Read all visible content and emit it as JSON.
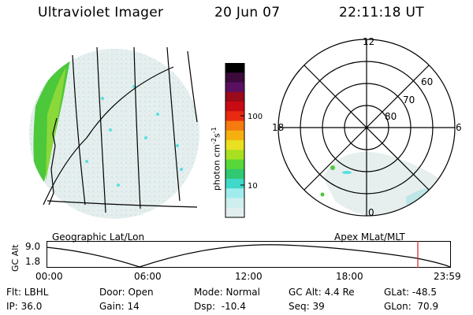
{
  "header": {
    "title": "Ultraviolet Imager",
    "date": "20 Jun 07",
    "time": "22:11:18 UT"
  },
  "geo_panel": {
    "label": "Geographic Lat/Lon"
  },
  "polar_panel": {
    "label": "Apex MLat/MLT",
    "mlt_labels": [
      "12",
      "18",
      "6",
      "0"
    ],
    "lat_labels": [
      "60",
      "70",
      "80"
    ]
  },
  "colorbar": {
    "unit": "photon cm",
    "unit_sup1": "-2",
    "unit_mid": "s",
    "unit_sup2": "-1",
    "ticks": [
      "100",
      "10"
    ],
    "colors": [
      "#000000",
      "#3b0a3b",
      "#5a1060",
      "#9a0a1a",
      "#c80a12",
      "#e82a10",
      "#f57a10",
      "#f5b010",
      "#e8e020",
      "#a8e020",
      "#58d838",
      "#30c870",
      "#40d8c8",
      "#a0ecec",
      "#cfeeee",
      "#e2eeee"
    ]
  },
  "alt_plot": {
    "axis_label": "GC Alt",
    "y_ticks": [
      "9.0",
      "1.8"
    ],
    "x_ticks": [
      "00:00",
      "06:00",
      "12:00",
      "18:00",
      "23:59"
    ],
    "marker_color": "#d02020"
  },
  "footer": {
    "row1": [
      "Flt: LBHL",
      "Door: Open",
      "Mode: Normal",
      "GC Alt: 4.4 Re",
      "GLat: -48.5"
    ],
    "row2": [
      "IP: 36.0",
      "Gain: 14",
      "Dsp:  -10.4",
      "Seq: 39",
      "GLon:  70.9"
    ]
  }
}
